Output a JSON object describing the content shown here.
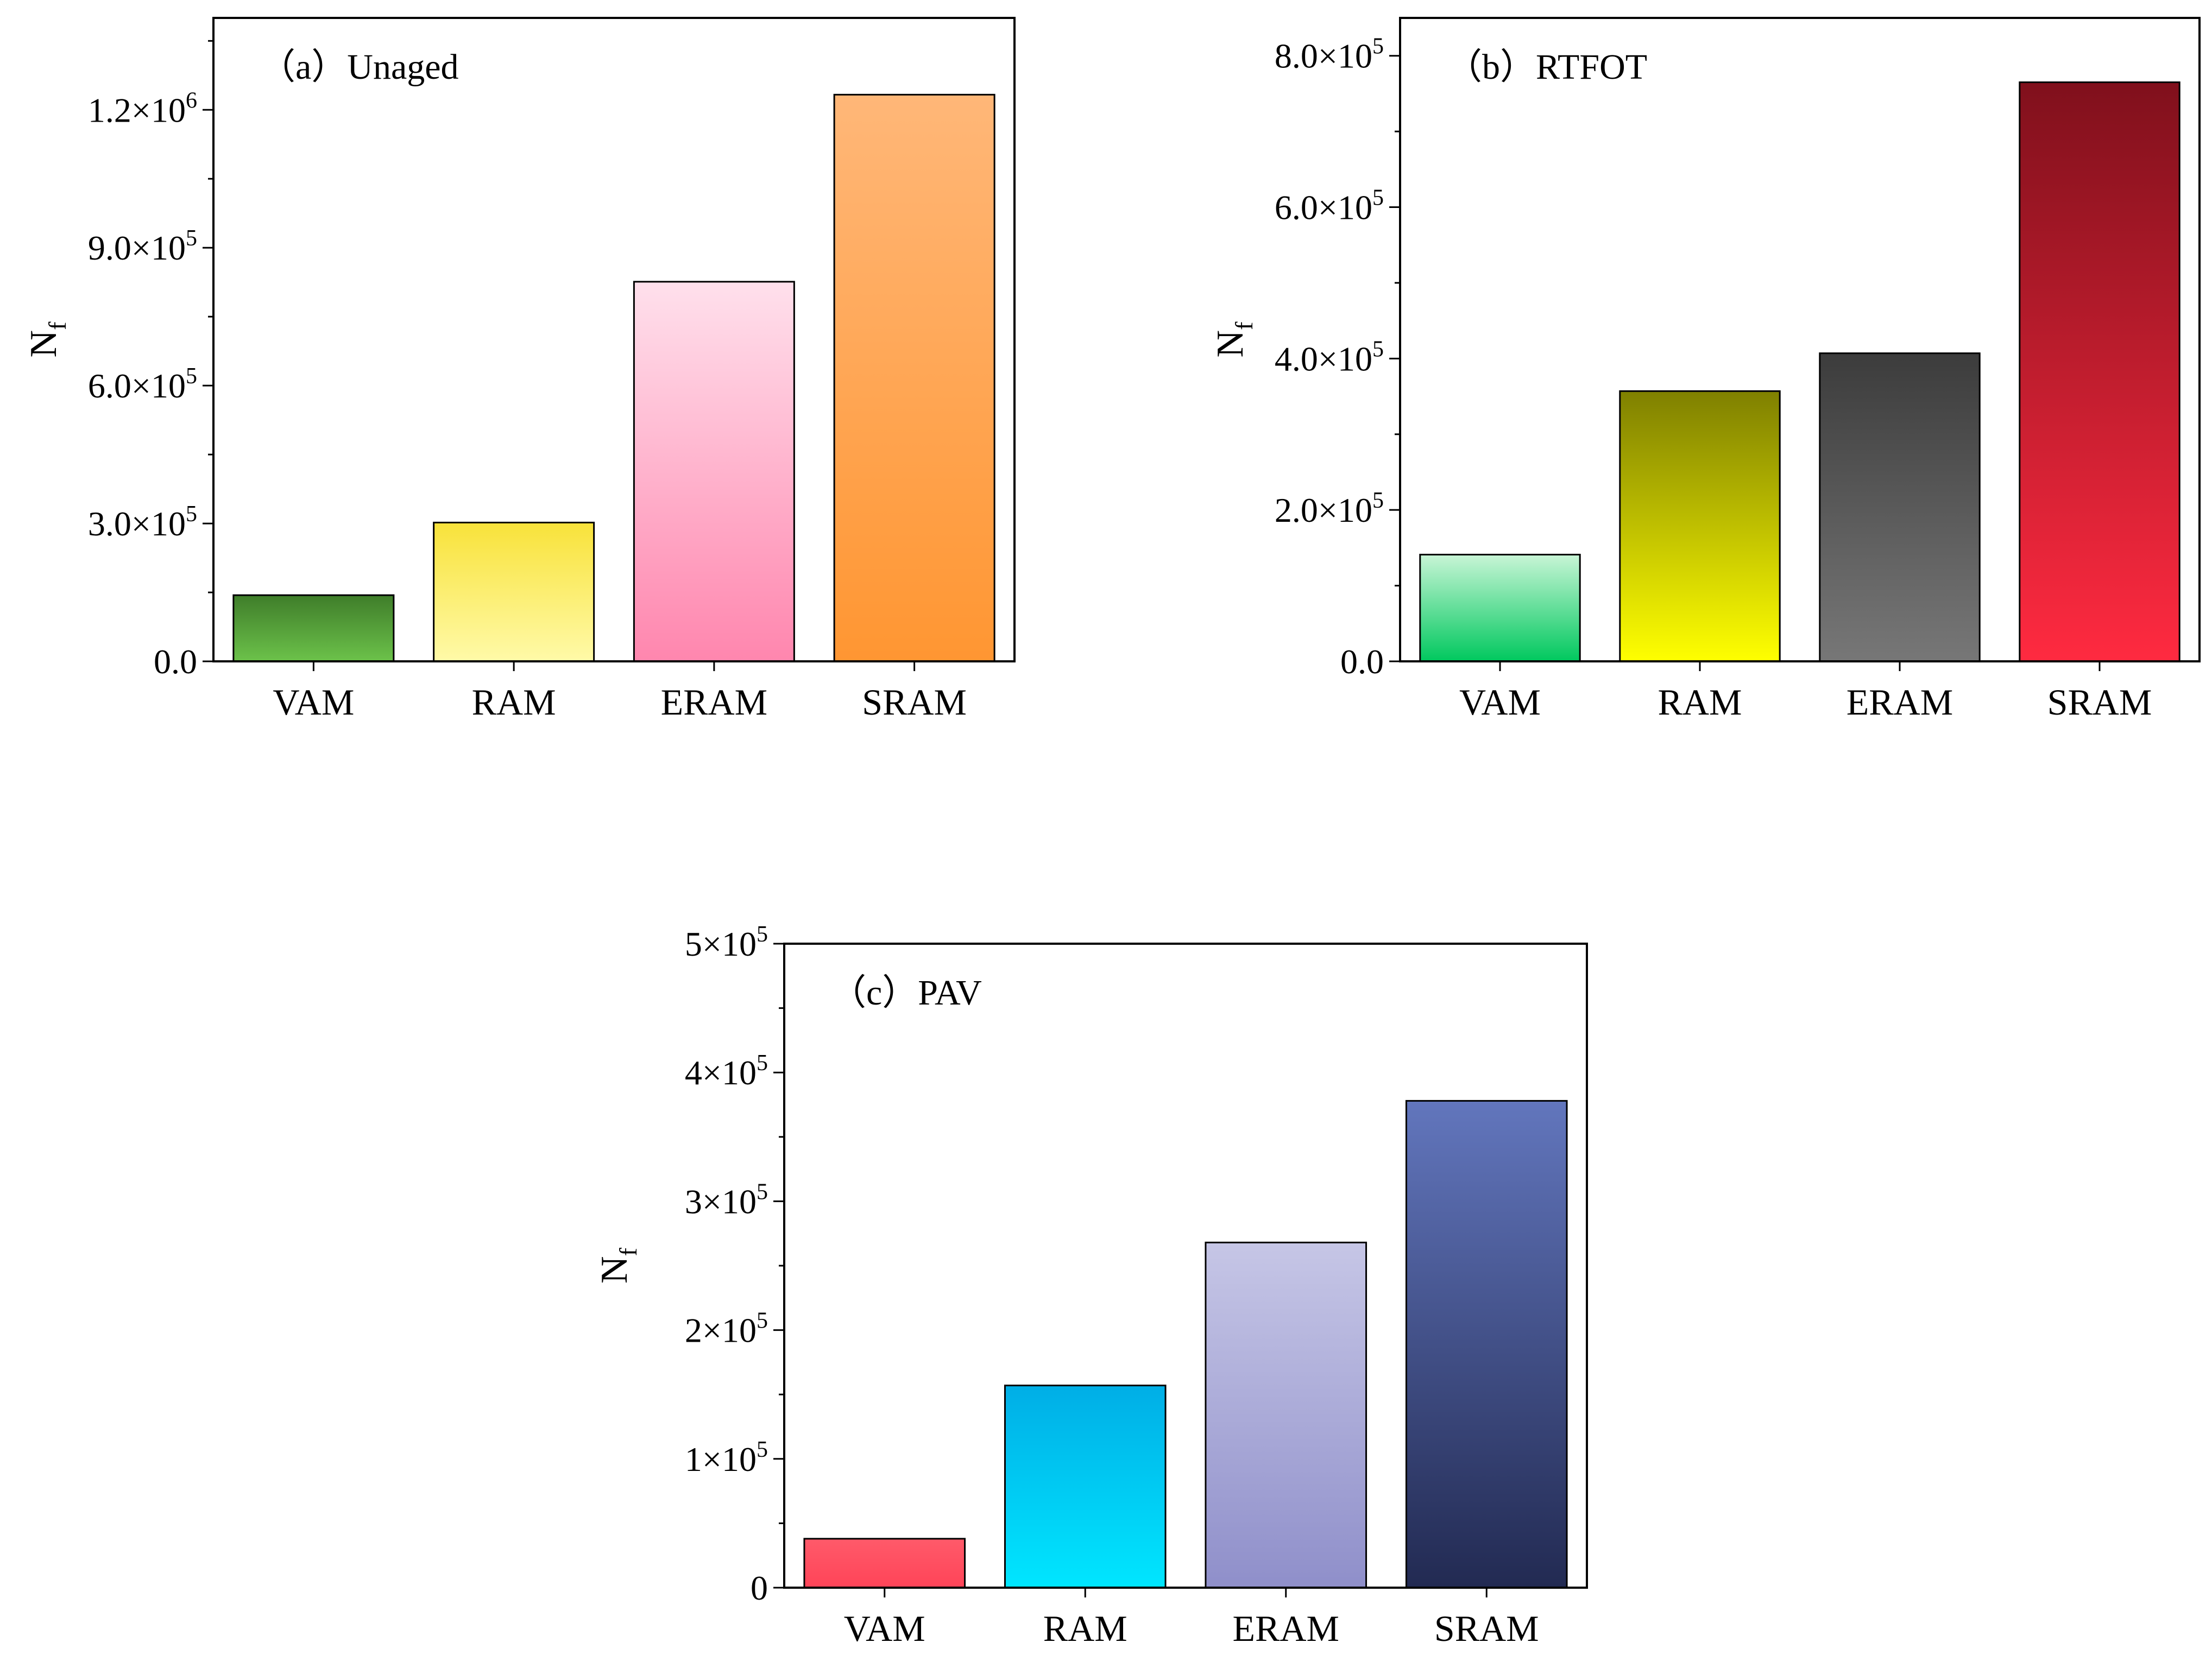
{
  "chart_data": [
    {
      "id": "a",
      "type": "bar",
      "title": "（a）Unaged",
      "ylabel": {
        "main": "N",
        "sub": "f"
      },
      "categories": [
        "VAM",
        "RAM",
        "ERAM",
        "SRAM"
      ],
      "values": [
        144000,
        302000,
        826000,
        1233000
      ],
      "ylim": [
        0,
        1400000
      ],
      "yticks": [
        {
          "value": 0,
          "mantissa": "0.0",
          "times": "",
          "exp": ""
        },
        {
          "value": 300000,
          "mantissa": "3.0",
          "times": "×10",
          "exp": "5"
        },
        {
          "value": 600000,
          "mantissa": "6.0",
          "times": "×10",
          "exp": "5"
        },
        {
          "value": 900000,
          "mantissa": "9.0",
          "times": "×10",
          "exp": "5"
        },
        {
          "value": 1200000,
          "mantissa": "1.2",
          "times": "×10",
          "exp": "6"
        }
      ],
      "minor_step": 150000,
      "bar_gradients": [
        [
          "#3f7d2a",
          "#6cc24a"
        ],
        [
          "#f8e23a",
          "#fffaa8"
        ],
        [
          "#ffe0ec",
          "#ff86ae"
        ],
        [
          "#ffb778",
          "#ff9632"
        ]
      ]
    },
    {
      "id": "b",
      "type": "bar",
      "title": "（b）RTFOT",
      "ylabel": {
        "main": "N",
        "sub": "f"
      },
      "categories": [
        "VAM",
        "RAM",
        "ERAM",
        "SRAM"
      ],
      "values": [
        141000,
        357000,
        407000,
        765000
      ],
      "ylim": [
        0,
        850000
      ],
      "yticks": [
        {
          "value": 0,
          "mantissa": "0.0",
          "times": "",
          "exp": ""
        },
        {
          "value": 200000,
          "mantissa": "2.0",
          "times": "×10",
          "exp": "5"
        },
        {
          "value": 400000,
          "mantissa": "4.0",
          "times": "×10",
          "exp": "5"
        },
        {
          "value": 600000,
          "mantissa": "6.0",
          "times": "×10",
          "exp": "5"
        },
        {
          "value": 800000,
          "mantissa": "8.0",
          "times": "×10",
          "exp": "5"
        }
      ],
      "minor_step": 100000,
      "bar_gradients": [
        [
          "#c8f5d6",
          "#00c85e"
        ],
        [
          "#7f8000",
          "#ffff00"
        ],
        [
          "#3c3c3c",
          "#777777"
        ],
        [
          "#80101c",
          "#ff2a40"
        ]
      ]
    },
    {
      "id": "c",
      "type": "bar",
      "title": "（c）PAV",
      "ylabel": {
        "main": "N",
        "sub": "f"
      },
      "categories": [
        "VAM",
        "RAM",
        "ERAM",
        "SRAM"
      ],
      "values": [
        38000,
        157000,
        268000,
        378000
      ],
      "ylim": [
        0,
        500000
      ],
      "yticks": [
        {
          "value": 0,
          "mantissa": "0",
          "times": "",
          "exp": ""
        },
        {
          "value": 100000,
          "mantissa": "1",
          "times": "×10",
          "exp": "5"
        },
        {
          "value": 200000,
          "mantissa": "2",
          "times": "×10",
          "exp": "5"
        },
        {
          "value": 300000,
          "mantissa": "3",
          "times": "×10",
          "exp": "5"
        },
        {
          "value": 400000,
          "mantissa": "4",
          "times": "×10",
          "exp": "5"
        },
        {
          "value": 500000,
          "mantissa": "5",
          "times": "×10",
          "exp": "5"
        }
      ],
      "minor_step": 50000,
      "bar_gradients": [
        [
          "#ff5a6a",
          "#ff4458"
        ],
        [
          "#00aee6",
          "#00e6ff"
        ],
        [
          "#c6c6e6",
          "#8f8fca"
        ],
        [
          "#6276bd",
          "#222a52"
        ]
      ]
    }
  ]
}
